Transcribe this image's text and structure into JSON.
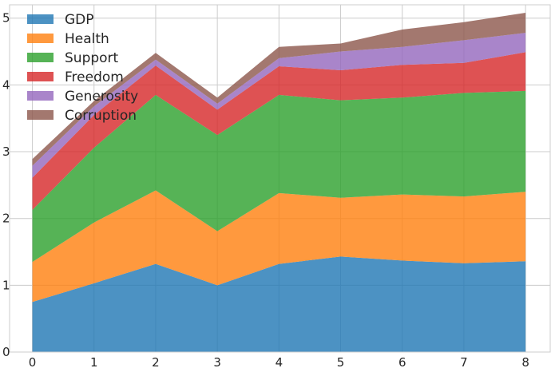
{
  "chart_data": {
    "type": "area",
    "stacked": true,
    "x": [
      0,
      1,
      2,
      3,
      4,
      5,
      6,
      7,
      8
    ],
    "xlim": [
      -0.37,
      8.4
    ],
    "ylim": [
      0,
      5.2
    ],
    "xticks": [
      "0",
      "1",
      "2",
      "3",
      "4",
      "5",
      "6",
      "7",
      "8"
    ],
    "yticks": [
      "0",
      "1",
      "2",
      "3",
      "4",
      "5"
    ],
    "grid": true,
    "legend_position": "top-left",
    "series": [
      {
        "name": "GDP",
        "color": "#1f77b4",
        "values": [
          0.75,
          1.03,
          1.32,
          1.0,
          1.32,
          1.43,
          1.37,
          1.33,
          1.36
        ]
      },
      {
        "name": "Health",
        "color": "#ff7f0e",
        "values": [
          0.6,
          0.91,
          1.1,
          0.81,
          1.06,
          0.88,
          0.99,
          1.0,
          1.04
        ]
      },
      {
        "name": "Support",
        "color": "#2ca02c",
        "values": [
          0.78,
          1.12,
          1.43,
          1.44,
          1.47,
          1.46,
          1.45,
          1.55,
          1.51
        ]
      },
      {
        "name": "Freedom",
        "color": "#d62728",
        "values": [
          0.48,
          0.49,
          0.44,
          0.38,
          0.43,
          0.45,
          0.49,
          0.45,
          0.58
        ]
      },
      {
        "name": "Generosity",
        "color": "#9467bd",
        "values": [
          0.18,
          0.13,
          0.09,
          0.09,
          0.12,
          0.28,
          0.27,
          0.34,
          0.29
        ]
      },
      {
        "name": "Corruption",
        "color": "#8c564b",
        "values": [
          0.1,
          0.08,
          0.1,
          0.09,
          0.17,
          0.12,
          0.26,
          0.27,
          0.3
        ]
      }
    ]
  }
}
